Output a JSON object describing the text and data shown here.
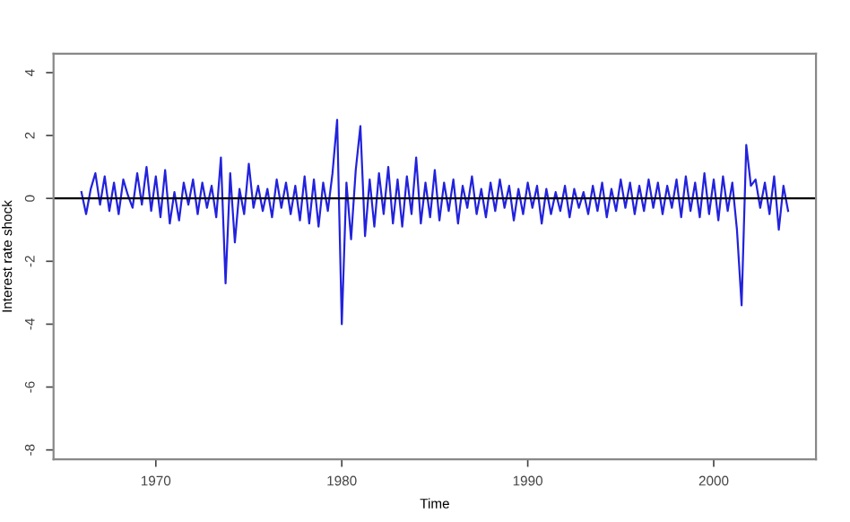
{
  "chart_data": {
    "type": "line",
    "xlabel": "Time",
    "ylabel": "Interest rate shock",
    "x": [
      1966.0,
      1966.25,
      1966.5,
      1966.75,
      1967.0,
      1967.25,
      1967.5,
      1967.75,
      1968.0,
      1968.25,
      1968.5,
      1968.75,
      1969.0,
      1969.25,
      1969.5,
      1969.75,
      1970.0,
      1970.25,
      1970.5,
      1970.75,
      1971.0,
      1971.25,
      1971.5,
      1971.75,
      1972.0,
      1972.25,
      1972.5,
      1972.75,
      1973.0,
      1973.25,
      1973.5,
      1973.75,
      1974.0,
      1974.25,
      1974.5,
      1974.75,
      1975.0,
      1975.25,
      1975.5,
      1975.75,
      1976.0,
      1976.25,
      1976.5,
      1976.75,
      1977.0,
      1977.25,
      1977.5,
      1977.75,
      1978.0,
      1978.25,
      1978.5,
      1978.75,
      1979.0,
      1979.25,
      1979.5,
      1979.75,
      1980.0,
      1980.25,
      1980.5,
      1980.75,
      1981.0,
      1981.25,
      1981.5,
      1981.75,
      1982.0,
      1982.25,
      1982.5,
      1982.75,
      1983.0,
      1983.25,
      1983.5,
      1983.75,
      1984.0,
      1984.25,
      1984.5,
      1984.75,
      1985.0,
      1985.25,
      1985.5,
      1985.75,
      1986.0,
      1986.25,
      1986.5,
      1986.75,
      1987.0,
      1987.25,
      1987.5,
      1987.75,
      1988.0,
      1988.25,
      1988.5,
      1988.75,
      1989.0,
      1989.25,
      1989.5,
      1989.75,
      1990.0,
      1990.25,
      1990.5,
      1990.75,
      1991.0,
      1991.25,
      1991.5,
      1991.75,
      1992.0,
      1992.25,
      1992.5,
      1992.75,
      1993.0,
      1993.25,
      1993.5,
      1993.75,
      1994.0,
      1994.25,
      1994.5,
      1994.75,
      1995.0,
      1995.25,
      1995.5,
      1995.75,
      1996.0,
      1996.25,
      1996.5,
      1996.75,
      1997.0,
      1997.25,
      1997.5,
      1997.75,
      1998.0,
      1998.25,
      1998.5,
      1998.75,
      1999.0,
      1999.25,
      1999.5,
      1999.75,
      2000.0,
      2000.25,
      2000.5,
      2000.75,
      2001.0,
      2001.25,
      2001.5,
      2001.75,
      2002.0,
      2002.25,
      2002.5,
      2002.75,
      2003.0,
      2003.25,
      2003.5,
      2003.75,
      2004.0
    ],
    "series": [
      {
        "color": "#2222dd",
        "values": [
          0.2,
          -0.5,
          0.3,
          0.8,
          -0.2,
          0.7,
          -0.4,
          0.5,
          -0.5,
          0.6,
          0.1,
          -0.3,
          0.8,
          -0.2,
          1.0,
          -0.4,
          0.7,
          -0.6,
          0.9,
          -0.8,
          0.2,
          -0.7,
          0.5,
          -0.2,
          0.6,
          -0.5,
          0.5,
          -0.3,
          0.4,
          -0.6,
          1.3,
          -2.7,
          0.8,
          -1.4,
          0.3,
          -0.5,
          1.1,
          -0.3,
          0.4,
          -0.4,
          0.3,
          -0.6,
          0.6,
          -0.3,
          0.5,
          -0.5,
          0.4,
          -0.7,
          0.7,
          -0.8,
          0.6,
          -0.9,
          0.5,
          -0.4,
          0.8,
          2.5,
          -4.0,
          0.5,
          -1.3,
          0.9,
          2.3,
          -1.2,
          0.6,
          -0.9,
          0.8,
          -0.5,
          1.0,
          -0.8,
          0.6,
          -0.9,
          0.7,
          -0.5,
          1.3,
          -0.8,
          0.5,
          -0.6,
          0.9,
          -0.7,
          0.5,
          -0.4,
          0.6,
          -0.8,
          0.4,
          -0.3,
          0.7,
          -0.5,
          0.3,
          -0.6,
          0.5,
          -0.4,
          0.6,
          -0.3,
          0.4,
          -0.7,
          0.3,
          -0.5,
          0.5,
          -0.3,
          0.4,
          -0.8,
          0.3,
          -0.5,
          0.2,
          -0.4,
          0.4,
          -0.6,
          0.3,
          -0.3,
          0.2,
          -0.5,
          0.4,
          -0.4,
          0.5,
          -0.6,
          0.3,
          -0.4,
          0.6,
          -0.3,
          0.5,
          -0.5,
          0.4,
          -0.4,
          0.6,
          -0.3,
          0.5,
          -0.5,
          0.4,
          -0.3,
          0.6,
          -0.6,
          0.7,
          -0.4,
          0.5,
          -0.6,
          0.8,
          -0.5,
          0.6,
          -0.7,
          0.7,
          -0.4,
          0.5,
          -1.0,
          -3.4,
          1.7,
          0.4,
          0.6,
          -0.3,
          0.5,
          -0.5,
          0.7,
          -1.0,
          0.4,
          -0.4
        ]
      }
    ],
    "xlim": [
      1964.5,
      2005.5
    ],
    "ylim": [
      -8.3,
      4.6
    ],
    "xticks": [
      1970,
      1980,
      1990,
      2000
    ],
    "yticks": [
      -8,
      -6,
      -4,
      -2,
      0,
      2,
      4
    ],
    "ref_lines": [
      {
        "axis": "y",
        "value": 0,
        "color": "#000000"
      }
    ],
    "grid": false,
    "legend": false
  }
}
